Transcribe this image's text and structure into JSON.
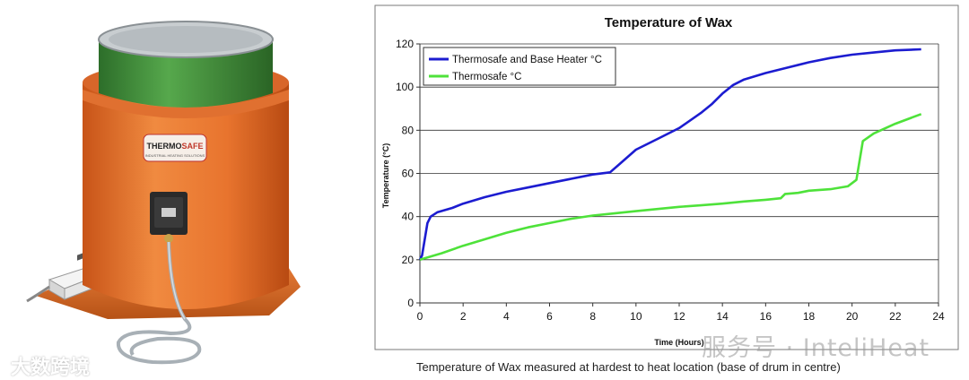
{
  "photo": {
    "brand_label": "THERMOSAFE",
    "brand_sub": "INDUSTRIAL HEATING SOLUTIONS",
    "colors": {
      "jacket": "#e8742e",
      "drum": "#3f8e3a"
    }
  },
  "watermark_left": "大数跨境",
  "watermark_right": "服务号 · InteliHeat",
  "caption": "Temperature of Wax measured at hardest to heat location (base of drum in centre)",
  "chart_data": {
    "type": "line",
    "title": "Temperature of Wax",
    "xlabel": "Time (Hours)",
    "ylabel": "Temperature (°C)",
    "xlim": [
      0,
      24
    ],
    "ylim": [
      0,
      120
    ],
    "xticks": [
      0,
      2,
      4,
      6,
      8,
      10,
      12,
      14,
      16,
      18,
      20,
      22,
      24
    ],
    "yticks": [
      0,
      20,
      40,
      60,
      80,
      100,
      120
    ],
    "grid": "horizontal",
    "legend_position": "top-left",
    "series": [
      {
        "name": "Thermosafe and Base Heater °C",
        "color": "#1c1cd0",
        "points": [
          [
            0,
            20
          ],
          [
            0.1,
            22
          ],
          [
            0.2,
            28
          ],
          [
            0.35,
            37
          ],
          [
            0.5,
            40
          ],
          [
            0.8,
            42
          ],
          [
            1.5,
            44
          ],
          [
            2,
            46
          ],
          [
            3,
            49
          ],
          [
            4,
            51.5
          ],
          [
            5,
            53.5
          ],
          [
            6,
            55.5
          ],
          [
            7,
            57.5
          ],
          [
            8,
            59.5
          ],
          [
            8.8,
            60.5
          ],
          [
            9.2,
            64
          ],
          [
            10,
            71
          ],
          [
            11,
            76
          ],
          [
            12,
            81
          ],
          [
            13,
            88
          ],
          [
            13.5,
            92
          ],
          [
            14,
            97
          ],
          [
            14.5,
            101
          ],
          [
            15,
            103.5
          ],
          [
            16,
            106.5
          ],
          [
            17,
            109
          ],
          [
            18,
            111.5
          ],
          [
            19,
            113.5
          ],
          [
            20,
            115
          ],
          [
            21,
            116
          ],
          [
            22,
            117
          ],
          [
            23.2,
            117.5
          ]
        ]
      },
      {
        "name": "Thermosafe °C",
        "color": "#4ee23a",
        "points": [
          [
            0,
            20
          ],
          [
            1,
            23
          ],
          [
            2,
            26.5
          ],
          [
            3,
            29.5
          ],
          [
            4,
            32.5
          ],
          [
            5,
            35
          ],
          [
            6,
            37
          ],
          [
            7,
            39
          ],
          [
            8,
            40.5
          ],
          [
            9,
            41.5
          ],
          [
            10,
            42.5
          ],
          [
            11,
            43.5
          ],
          [
            12,
            44.5
          ],
          [
            13,
            45.2
          ],
          [
            14,
            46
          ],
          [
            15,
            47
          ],
          [
            16,
            47.8
          ],
          [
            16.7,
            48.5
          ],
          [
            16.9,
            50.5
          ],
          [
            17.5,
            51
          ],
          [
            18,
            52
          ],
          [
            19,
            52.7
          ],
          [
            19.8,
            54
          ],
          [
            20.2,
            57
          ],
          [
            20.35,
            66
          ],
          [
            20.5,
            75
          ],
          [
            21,
            78.5
          ],
          [
            22,
            83
          ],
          [
            23.2,
            87.5
          ]
        ]
      }
    ]
  }
}
